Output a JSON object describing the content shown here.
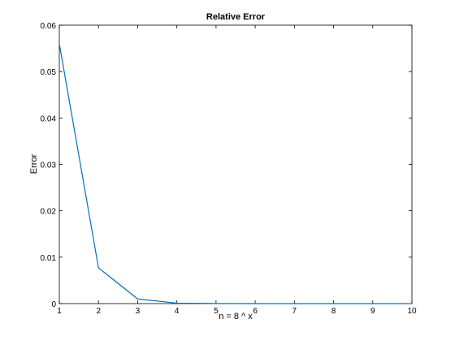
{
  "chart_data": {
    "type": "line",
    "title": "Relative Error",
    "xlabel": "n = 8 ^ x",
    "ylabel": "Error",
    "xlim": [
      1,
      10
    ],
    "ylim": [
      0,
      0.06
    ],
    "xticks": [
      "1",
      "2",
      "3",
      "4",
      "5",
      "6",
      "7",
      "8",
      "9",
      "10"
    ],
    "yticks": [
      "0",
      "0.01",
      "0.02",
      "0.03",
      "0.04",
      "0.05",
      "0.06"
    ],
    "grid": false,
    "series": [
      {
        "color": "#0072BD",
        "x": [
          1,
          2,
          3,
          4,
          5,
          6,
          7,
          8,
          9,
          10
        ],
        "y": [
          0.056,
          0.0077,
          0.001,
          0.0001,
          2e-05,
          3e-06,
          5e-07,
          1e-07,
          2e-08,
          3e-09
        ]
      }
    ]
  }
}
